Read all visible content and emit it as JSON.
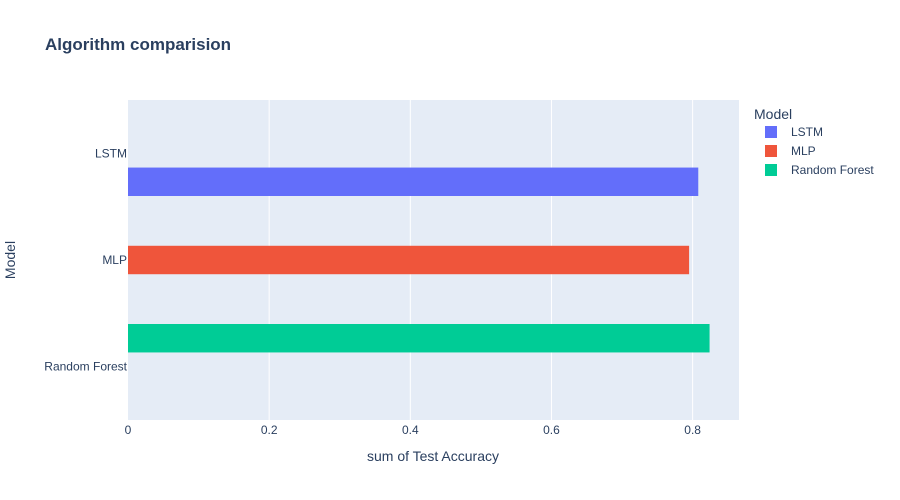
{
  "chart_data": {
    "type": "bar",
    "orientation": "horizontal",
    "barmode": "group",
    "title": "Algorithm comparision",
    "xlabel": "sum of Test Accuracy",
    "ylabel": "Model",
    "categories": [
      "LSTM",
      "MLP",
      "Random Forest"
    ],
    "xlim": [
      0,
      0.8657
    ],
    "xticks": [
      0,
      0.2,
      0.4,
      0.6,
      0.8
    ],
    "xtick_labels": [
      "0",
      "0.2",
      "0.4",
      "0.6",
      "0.8"
    ],
    "grid": true,
    "legend": {
      "title": "Model",
      "placement": "right"
    },
    "series": [
      {
        "name": "LSTM",
        "color": "#636efa",
        "values": [
          0.808,
          null,
          null
        ]
      },
      {
        "name": "MLP",
        "color": "#EF553B",
        "values": [
          null,
          0.795,
          null
        ]
      },
      {
        "name": "Random Forest",
        "color": "#00cc96",
        "values": [
          null,
          null,
          0.824
        ]
      }
    ]
  }
}
